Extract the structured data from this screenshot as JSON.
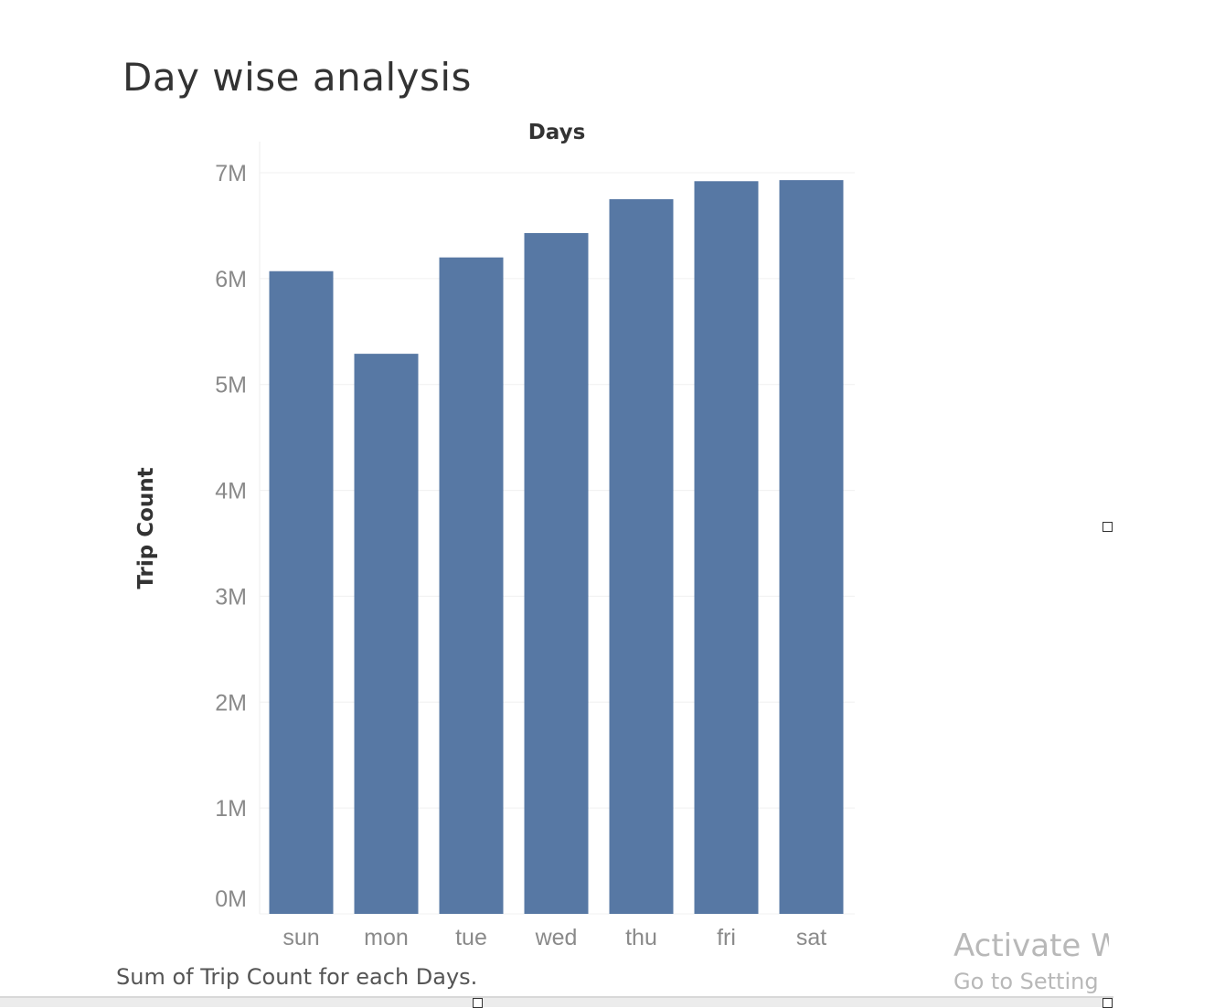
{
  "page": {
    "title": "Day wise analysis",
    "caption": "Sum of Trip Count for each Days.",
    "watermark": {
      "line1": "Activate W",
      "line2": "Go to Setting"
    }
  },
  "chart_data": {
    "type": "bar",
    "title": "",
    "xlabel": "Days",
    "ylabel": "Trip Count",
    "categories": [
      "sun",
      "mon",
      "tue",
      "wed",
      "thu",
      "fri",
      "sat"
    ],
    "values": [
      6070000,
      5290000,
      6200000,
      6430000,
      6750000,
      6920000,
      6930000
    ],
    "ylim": [
      0,
      7000000
    ],
    "yticks": [
      {
        "value": 0,
        "label": "0M"
      },
      {
        "value": 1000000,
        "label": "1M"
      },
      {
        "value": 2000000,
        "label": "2M"
      },
      {
        "value": 3000000,
        "label": "3M"
      },
      {
        "value": 4000000,
        "label": "4M"
      },
      {
        "value": 5000000,
        "label": "5M"
      },
      {
        "value": 6000000,
        "label": "6M"
      },
      {
        "value": 7000000,
        "label": "7M"
      }
    ],
    "bar_color": "#5778a4",
    "grid": true,
    "xlabel_position": "top"
  }
}
